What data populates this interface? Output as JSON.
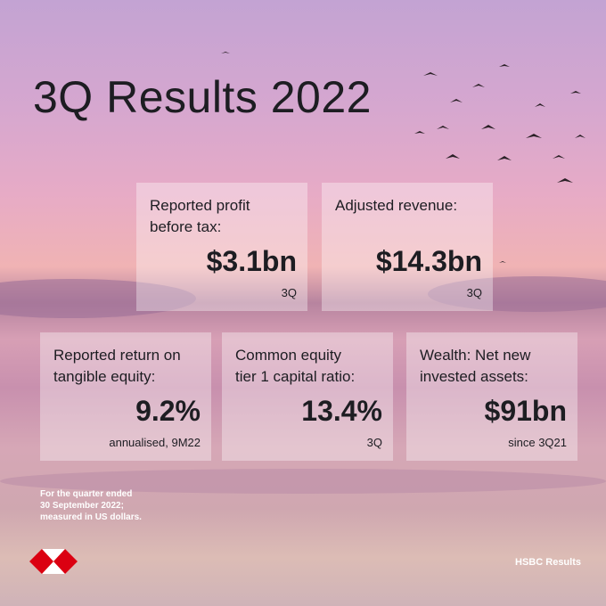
{
  "header": {
    "title": "3Q Results 2022"
  },
  "cards": [
    {
      "label": [
        "Reported profit",
        "before tax:"
      ],
      "value": "$3.1bn",
      "note": "3Q"
    },
    {
      "label": [
        "Adjusted revenue:"
      ],
      "value": "$14.3bn",
      "note": "3Q"
    },
    {
      "label": [
        "Reported return on",
        "tangible equity:"
      ],
      "value": "9.2%",
      "note": "annualised, 9M22"
    },
    {
      "label": [
        "Common equity",
        "tier 1 capital ratio:"
      ],
      "value": "13.4%",
      "note": "3Q"
    },
    {
      "label": [
        "Wealth: Net new",
        "invested assets:"
      ],
      "value": "$91bn",
      "note": "since 3Q21"
    }
  ],
  "footnote": [
    "For the quarter ended",
    "30 September 2022;",
    "measured in US dollars."
  ],
  "brand": "HSBC Results"
}
